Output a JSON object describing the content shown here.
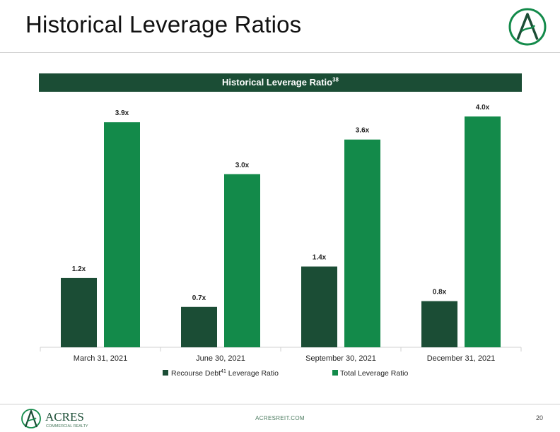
{
  "slide": {
    "title": "Historical Leverage Ratios",
    "page_number": "20",
    "footer_url": "ACRESREIT.COM",
    "logo_top_icon": "acres-a-monogram-icon",
    "logo_footer": {
      "name": "ACRES",
      "sub": "COMMERCIAL REALTY"
    }
  },
  "colors": {
    "banner": "#1b4d35",
    "recourse": "#1b4d35",
    "total": "#138a4a",
    "axis": "#d0d0d0"
  },
  "chart_data": {
    "type": "bar",
    "title": "Historical Leverage Ratio",
    "title_superscript": "38",
    "categories": [
      "March 31, 2021",
      "June 30, 2021",
      "September 30, 2021",
      "December 31, 2021"
    ],
    "series": [
      {
        "name": "Recourse Debt41 Leverage Ratio",
        "name_parts": {
          "before": "Recourse Debt",
          "sup": "41",
          "after": " Leverage Ratio"
        },
        "values": [
          1.2,
          0.7,
          1.4,
          0.8
        ],
        "labels": [
          "1.2x",
          "0.7x",
          "1.4x",
          "0.8x"
        ]
      },
      {
        "name": "Total Leverage Ratio",
        "values": [
          3.9,
          3.0,
          3.6,
          4.0
        ],
        "labels": [
          "3.9x",
          "3.0x",
          "3.6x",
          "4.0x"
        ]
      }
    ],
    "ylim": [
      0,
      4.0
    ],
    "grid": false,
    "legend_position": "bottom"
  }
}
